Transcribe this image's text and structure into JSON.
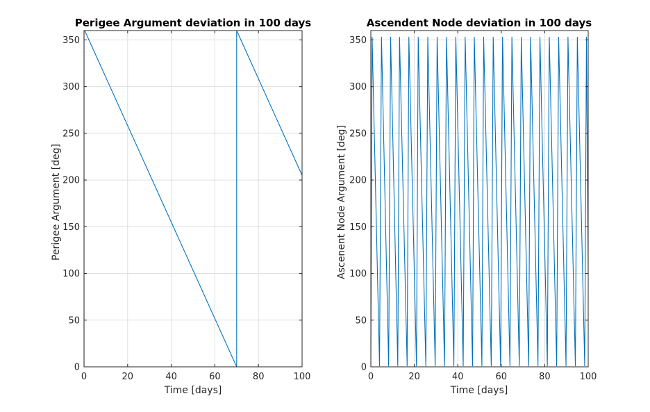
{
  "chart_data": [
    {
      "type": "line",
      "title": "Perigee Argument deviation in 100 days",
      "xlabel": "Time [days]",
      "ylabel": "Perigee Argument [deg]",
      "xlim": [
        0,
        100
      ],
      "ylim": [
        0,
        360
      ],
      "xticks": [
        0,
        20,
        40,
        60,
        80,
        100
      ],
      "yticks": [
        0,
        50,
        100,
        150,
        200,
        250,
        300,
        350
      ],
      "grid": true,
      "series": [
        {
          "color": "#0072bd",
          "x": [
            0,
            0,
            0.5,
            70.0,
            70.0,
            70.0,
            100
          ],
          "y": [
            0,
            360,
            359,
            0,
            0,
            360,
            205
          ]
        }
      ]
    },
    {
      "type": "line",
      "title": "Ascendent Node deviation in 100 days",
      "xlabel": "Time [days]",
      "ylabel": "Ascenent Node Argument [deg]",
      "xlim": [
        0,
        100
      ],
      "ylim": [
        0,
        360
      ],
      "xticks": [
        0,
        20,
        40,
        60,
        80,
        100
      ],
      "yticks": [
        0,
        50,
        100,
        150,
        200,
        250,
        300,
        350
      ],
      "grid": true,
      "series": [
        {
          "color": "#0072bd",
          "pattern": "sawtooth",
          "x0": 0,
          "y0": 0,
          "peak_x": [
            0.6,
            4.9,
            9.1,
            13.2,
            17.5,
            21.8,
            26.2,
            30.5,
            34.8,
            39.1,
            43.4,
            47.6,
            51.9,
            56.3,
            60.6,
            64.9,
            69.2,
            73.5,
            77.8,
            82.1,
            86.4,
            90.7,
            95.0,
            99.2
          ],
          "trough_x": [
            4.0,
            8.2,
            12.4,
            16.7,
            21.0,
            25.3,
            29.6,
            33.9,
            38.2,
            42.5,
            46.8,
            51.1,
            55.4,
            59.7,
            64.0,
            68.3,
            72.6,
            76.9,
            81.2,
            85.5,
            89.8,
            94.1,
            98.4
          ],
          "peak_y": 353,
          "trough_y": 1,
          "end_x": 100,
          "end_y": 100
        }
      ]
    }
  ]
}
